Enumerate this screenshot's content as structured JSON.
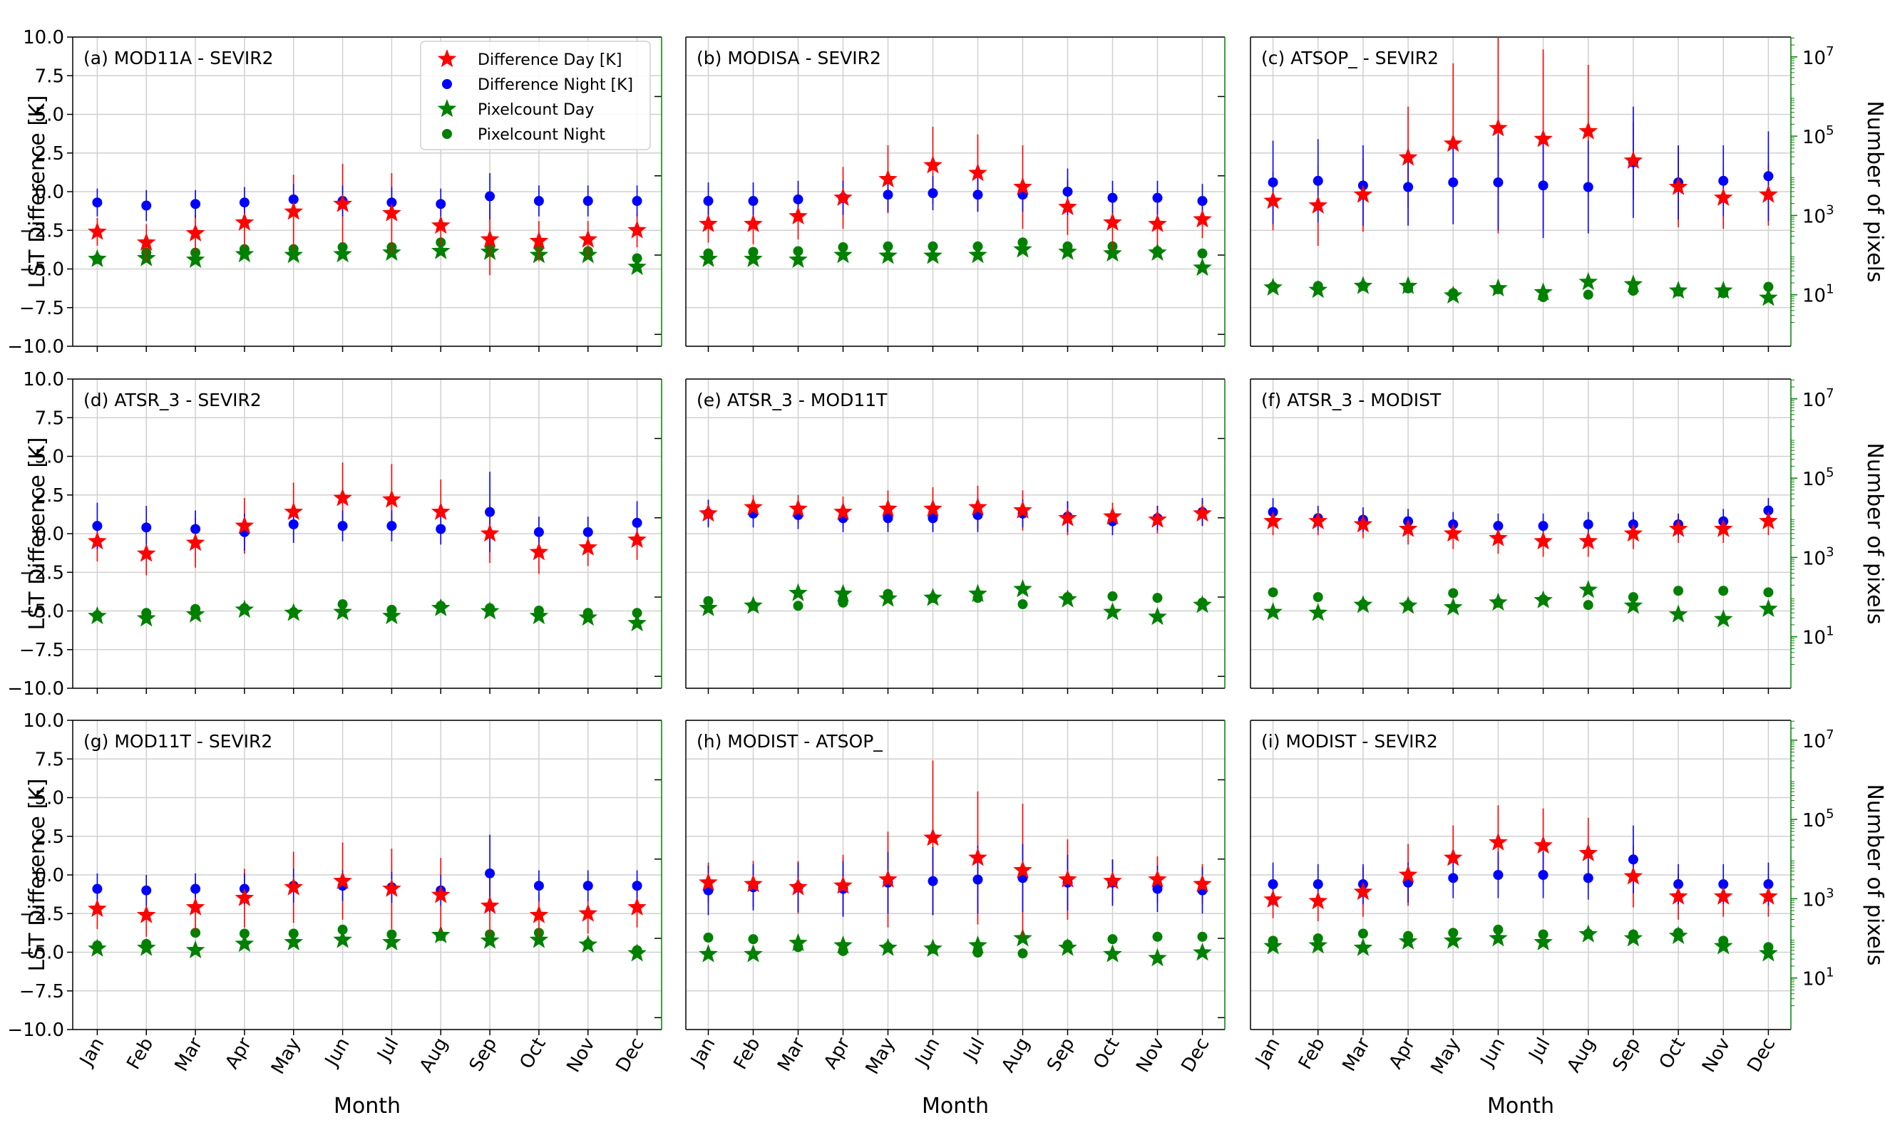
{
  "figure": {
    "ylabel": "LST Difference [K]",
    "y2label": "Number of pixels",
    "xlabel": "Month"
  },
  "legend": {
    "items": [
      {
        "label": "Difference Day [K]",
        "marker": "star",
        "color": "#ff0000"
      },
      {
        "label": "Difference Night [K]",
        "marker": "dot",
        "color": "#0000ff"
      },
      {
        "label": "Pixelcount Day",
        "marker": "star",
        "color": "#008000"
      },
      {
        "label": "Pixelcount Night",
        "marker": "dot",
        "color": "#008000"
      }
    ]
  },
  "colors": {
    "day": "#ff0000",
    "night": "#0000ff",
    "count": "#008000",
    "grid": "#d0d0d0"
  },
  "chart_data": {
    "type": "scatter",
    "categories": [
      "Jan",
      "Feb",
      "Mar",
      "Apr",
      "May",
      "Jun",
      "Jul",
      "Aug",
      "Sep",
      "Oct",
      "Nov",
      "Dec"
    ],
    "ylim": [
      -10,
      10
    ],
    "yticks": [
      "10.0",
      "7.5",
      "5.0",
      "2.5",
      "0.0",
      "−2.5",
      "−5.0",
      "−7.5",
      "−10.0"
    ],
    "y2_log_range": [
      -0.3,
      7.5
    ],
    "y2ticks": [
      {
        "label": "10",
        "exp": "7",
        "value": 7
      },
      {
        "label": "10",
        "exp": "5",
        "value": 5
      },
      {
        "label": "10",
        "exp": "3",
        "value": 3
      },
      {
        "label": "10",
        "exp": "1",
        "value": 1
      }
    ],
    "panels": [
      {
        "title": "(a) MOD11A - SEVIR2",
        "day": [
          -2.6,
          -3.3,
          -2.7,
          -2.0,
          -1.3,
          -0.8,
          -1.4,
          -2.2,
          -3.1,
          -3.2,
          -3.1,
          -2.5
        ],
        "day_err": [
          0.9,
          1.2,
          1.2,
          1.6,
          2.4,
          2.6,
          2.6,
          1.3,
          2.3,
          1.3,
          1.2,
          1.1
        ],
        "night": [
          -0.7,
          -0.9,
          -0.8,
          -0.7,
          -0.5,
          -0.6,
          -0.7,
          -0.8,
          -0.3,
          -0.6,
          -0.6,
          -0.6
        ],
        "night_err": [
          0.9,
          1.0,
          0.9,
          1.0,
          1.0,
          1.0,
          1.0,
          1.0,
          1.5,
          1.0,
          1.0,
          1.0
        ],
        "count_day": [
          1.9,
          1.92,
          1.88,
          2.02,
          2.0,
          2.02,
          2.06,
          2.1,
          2.08,
          2.0,
          2.0,
          1.7
        ],
        "count_night": [
          1.9,
          2.06,
          2.06,
          2.15,
          2.15,
          2.2,
          2.2,
          2.32,
          2.22,
          2.2,
          2.1,
          1.92
        ]
      },
      {
        "title": "(b) MODISA - SEVIR2",
        "day": [
          -2.1,
          -2.1,
          -1.6,
          -0.4,
          0.8,
          1.7,
          1.2,
          0.3,
          -1.0,
          -2.0,
          -2.1,
          -1.8
        ],
        "day_err": [
          1.2,
          1.3,
          1.5,
          2.0,
          2.2,
          2.5,
          2.5,
          2.7,
          1.8,
          1.8,
          1.3,
          1.2
        ],
        "night": [
          -0.6,
          -0.6,
          -0.5,
          -0.4,
          -0.2,
          -0.1,
          -0.2,
          -0.2,
          0.0,
          -0.4,
          -0.4,
          -0.6
        ],
        "night_err": [
          1.2,
          1.2,
          1.2,
          1.1,
          1.1,
          1.1,
          1.1,
          1.1,
          1.5,
          1.1,
          1.1,
          1.1
        ],
        "count_day": [
          1.9,
          1.9,
          1.88,
          2.0,
          1.98,
          1.98,
          2.0,
          2.14,
          2.08,
          2.04,
          2.06,
          1.68
        ],
        "count_night": [
          2.04,
          2.08,
          2.1,
          2.2,
          2.22,
          2.22,
          2.22,
          2.32,
          2.22,
          2.22,
          2.1,
          2.04
        ]
      },
      {
        "title": "(c) ATSOP_ - SEVIR2",
        "day": [
          -0.6,
          -0.9,
          -0.2,
          2.2,
          3.1,
          4.1,
          3.4,
          3.9,
          2.0,
          0.3,
          -0.4,
          -0.2
        ],
        "day_err": [
          1.9,
          2.6,
          2.4,
          3.3,
          5.2,
          6.8,
          5.8,
          4.3,
          2.5,
          2.6,
          2.0,
          2.0
        ],
        "night": [
          0.6,
          0.7,
          0.4,
          0.3,
          0.6,
          0.6,
          0.4,
          0.3,
          1.9,
          0.6,
          0.7,
          1.0
        ],
        "night_err": [
          2.7,
          2.7,
          2.6,
          2.5,
          2.7,
          3.1,
          3.4,
          3.0,
          3.6,
          2.4,
          2.3,
          2.9
        ],
        "count_day": [
          1.18,
          1.12,
          1.22,
          1.22,
          0.98,
          1.16,
          1.06,
          1.32,
          1.26,
          1.1,
          1.1,
          0.92
        ],
        "count_night": [
          1.2,
          1.22,
          1.22,
          1.16,
          1.04,
          1.14,
          0.94,
          1.0,
          1.1,
          1.08,
          1.04,
          1.2
        ]
      },
      {
        "title": "(d) ATSR_3 - SEVIR2",
        "day": [
          -0.5,
          -1.3,
          -0.6,
          0.5,
          1.4,
          2.3,
          2.2,
          1.4,
          0.0,
          -1.2,
          -0.9,
          -0.4
        ],
        "day_err": [
          1.3,
          1.4,
          1.6,
          1.8,
          1.9,
          2.3,
          2.3,
          2.1,
          1.9,
          1.4,
          1.2,
          1.3
        ],
        "night": [
          0.5,
          0.4,
          0.3,
          0.1,
          0.6,
          0.5,
          0.5,
          0.3,
          1.4,
          0.1,
          0.1,
          0.7
        ],
        "night_err": [
          1.5,
          1.4,
          1.2,
          1.2,
          1.2,
          1.0,
          1.0,
          1.0,
          2.6,
          1.0,
          1.0,
          1.4
        ],
        "count_day": [
          1.52,
          1.46,
          1.56,
          1.68,
          1.6,
          1.62,
          1.52,
          1.72,
          1.64,
          1.52,
          1.48,
          1.34
        ],
        "count_night": [
          1.54,
          1.6,
          1.7,
          1.72,
          1.62,
          1.82,
          1.68,
          1.78,
          1.72,
          1.66,
          1.6,
          1.6
        ]
      },
      {
        "title": "(e) ATSR_3 - MOD11T",
        "day": [
          1.3,
          1.7,
          1.6,
          1.4,
          1.6,
          1.6,
          1.7,
          1.5,
          1.0,
          1.1,
          0.9,
          1.3
        ],
        "day_err": [
          0.8,
          0.8,
          0.9,
          1.0,
          1.2,
          1.4,
          1.4,
          1.3,
          1.1,
          0.9,
          0.9,
          0.8
        ],
        "night": [
          1.3,
          1.3,
          1.2,
          1.0,
          1.0,
          1.0,
          1.2,
          1.3,
          1.1,
          0.8,
          1.0,
          1.4
        ],
        "night_err": [
          0.9,
          0.9,
          0.9,
          0.9,
          0.9,
          0.9,
          1.1,
          0.9,
          1.0,
          0.9,
          0.8,
          0.9
        ],
        "count_day": [
          1.72,
          1.78,
          2.1,
          2.08,
          1.96,
          1.98,
          2.08,
          2.2,
          1.94,
          1.62,
          1.5,
          1.8
        ],
        "count_night": [
          1.9,
          1.78,
          1.78,
          1.86,
          2.08,
          1.98,
          1.98,
          1.82,
          2.0,
          2.02,
          1.98,
          1.86
        ]
      },
      {
        "title": "(f) ATSR_3 - MODIST",
        "day": [
          0.8,
          0.8,
          0.6,
          0.3,
          0.0,
          -0.3,
          -0.5,
          -0.5,
          0.0,
          0.3,
          0.3,
          0.8
        ],
        "day_err": [
          0.9,
          0.9,
          0.9,
          1.0,
          1.0,
          1.0,
          1.0,
          1.0,
          1.0,
          0.9,
          0.9,
          0.9
        ],
        "night": [
          1.4,
          1.0,
          0.9,
          0.8,
          0.6,
          0.5,
          0.5,
          0.6,
          0.6,
          0.6,
          0.8,
          1.5
        ],
        "night_err": [
          0.9,
          0.8,
          0.8,
          0.8,
          0.8,
          0.8,
          0.8,
          0.8,
          0.8,
          0.7,
          0.8,
          0.8
        ],
        "count_day": [
          1.62,
          1.6,
          1.8,
          1.78,
          1.74,
          1.86,
          1.92,
          2.18,
          1.78,
          1.56,
          1.44,
          1.7
        ],
        "count_night": [
          2.12,
          2.0,
          1.82,
          1.8,
          2.1,
          1.86,
          1.94,
          1.8,
          2.0,
          2.16,
          2.16,
          2.12
        ]
      },
      {
        "title": "(g) MOD11T - SEVIR2",
        "day": [
          -2.2,
          -2.6,
          -2.1,
          -1.5,
          -0.8,
          -0.4,
          -0.9,
          -1.3,
          -2.0,
          -2.6,
          -2.5,
          -2.1
        ],
        "day_err": [
          1.3,
          1.4,
          1.6,
          1.9,
          2.3,
          2.5,
          2.6,
          2.4,
          1.9,
          1.4,
          1.3,
          1.3
        ],
        "night": [
          -0.9,
          -1.0,
          -0.9,
          -0.9,
          -0.7,
          -0.7,
          -0.8,
          -1.0,
          0.1,
          -0.7,
          -0.7,
          -0.7
        ],
        "night_err": [
          1.0,
          1.0,
          1.0,
          1.0,
          1.1,
          1.0,
          1.0,
          1.0,
          2.5,
          1.0,
          1.0,
          1.0
        ],
        "count_day": [
          1.74,
          1.76,
          1.7,
          1.86,
          1.9,
          1.96,
          1.9,
          2.08,
          1.94,
          1.96,
          1.84,
          1.62
        ],
        "count_night": [
          1.82,
          1.86,
          2.14,
          2.12,
          2.12,
          2.22,
          2.1,
          2.06,
          2.1,
          2.14,
          1.86,
          1.7
        ]
      },
      {
        "title": "(h) MODIST - ATSOP_",
        "day": [
          -0.5,
          -0.6,
          -0.8,
          -0.7,
          -0.3,
          2.4,
          1.1,
          0.3,
          -0.3,
          -0.4,
          -0.3,
          -0.6
        ],
        "day_err": [
          1.3,
          1.5,
          1.7,
          2.0,
          3.1,
          5.0,
          4.3,
          4.3,
          2.6,
          1.4,
          1.5,
          1.3
        ],
        "night": [
          -1.0,
          -0.8,
          -0.8,
          -0.9,
          -0.5,
          -0.4,
          -0.3,
          -0.2,
          -0.5,
          -0.5,
          -0.9,
          -1.0
        ],
        "night_err": [
          1.6,
          1.5,
          1.6,
          1.8,
          2.0,
          2.2,
          2.2,
          2.2,
          1.8,
          1.5,
          1.5,
          1.5
        ],
        "count_day": [
          1.6,
          1.6,
          1.88,
          1.82,
          1.76,
          1.74,
          1.82,
          2.0,
          1.76,
          1.6,
          1.5,
          1.64
        ],
        "count_night": [
          2.02,
          1.98,
          1.78,
          1.68,
          1.78,
          1.74,
          1.64,
          1.62,
          1.84,
          1.98,
          2.04,
          2.04
        ]
      },
      {
        "title": "(i) MODIST - SEVIR2",
        "day": [
          -1.6,
          -1.7,
          -1.1,
          0.0,
          1.1,
          2.1,
          1.9,
          1.4,
          -0.1,
          -1.4,
          -1.4,
          -1.4
        ],
        "day_err": [
          1.2,
          1.3,
          1.6,
          2.0,
          2.1,
          2.4,
          2.4,
          2.3,
          2.0,
          1.5,
          1.3,
          1.3
        ],
        "night": [
          -0.6,
          -0.6,
          -0.6,
          -0.5,
          -0.2,
          0.0,
          0.0,
          -0.2,
          1.0,
          -0.6,
          -0.6,
          -0.6
        ],
        "night_err": [
          1.4,
          1.3,
          1.3,
          1.3,
          1.3,
          1.5,
          1.5,
          1.4,
          2.2,
          1.3,
          1.3,
          1.4
        ],
        "count_day": [
          1.8,
          1.82,
          1.76,
          1.92,
          1.94,
          2.0,
          1.9,
          2.1,
          2.0,
          2.06,
          1.8,
          1.62
        ],
        "count_night": [
          1.94,
          2.0,
          2.12,
          2.06,
          2.14,
          2.22,
          2.1,
          2.12,
          2.1,
          2.14,
          1.94,
          1.78
        ]
      }
    ]
  }
}
